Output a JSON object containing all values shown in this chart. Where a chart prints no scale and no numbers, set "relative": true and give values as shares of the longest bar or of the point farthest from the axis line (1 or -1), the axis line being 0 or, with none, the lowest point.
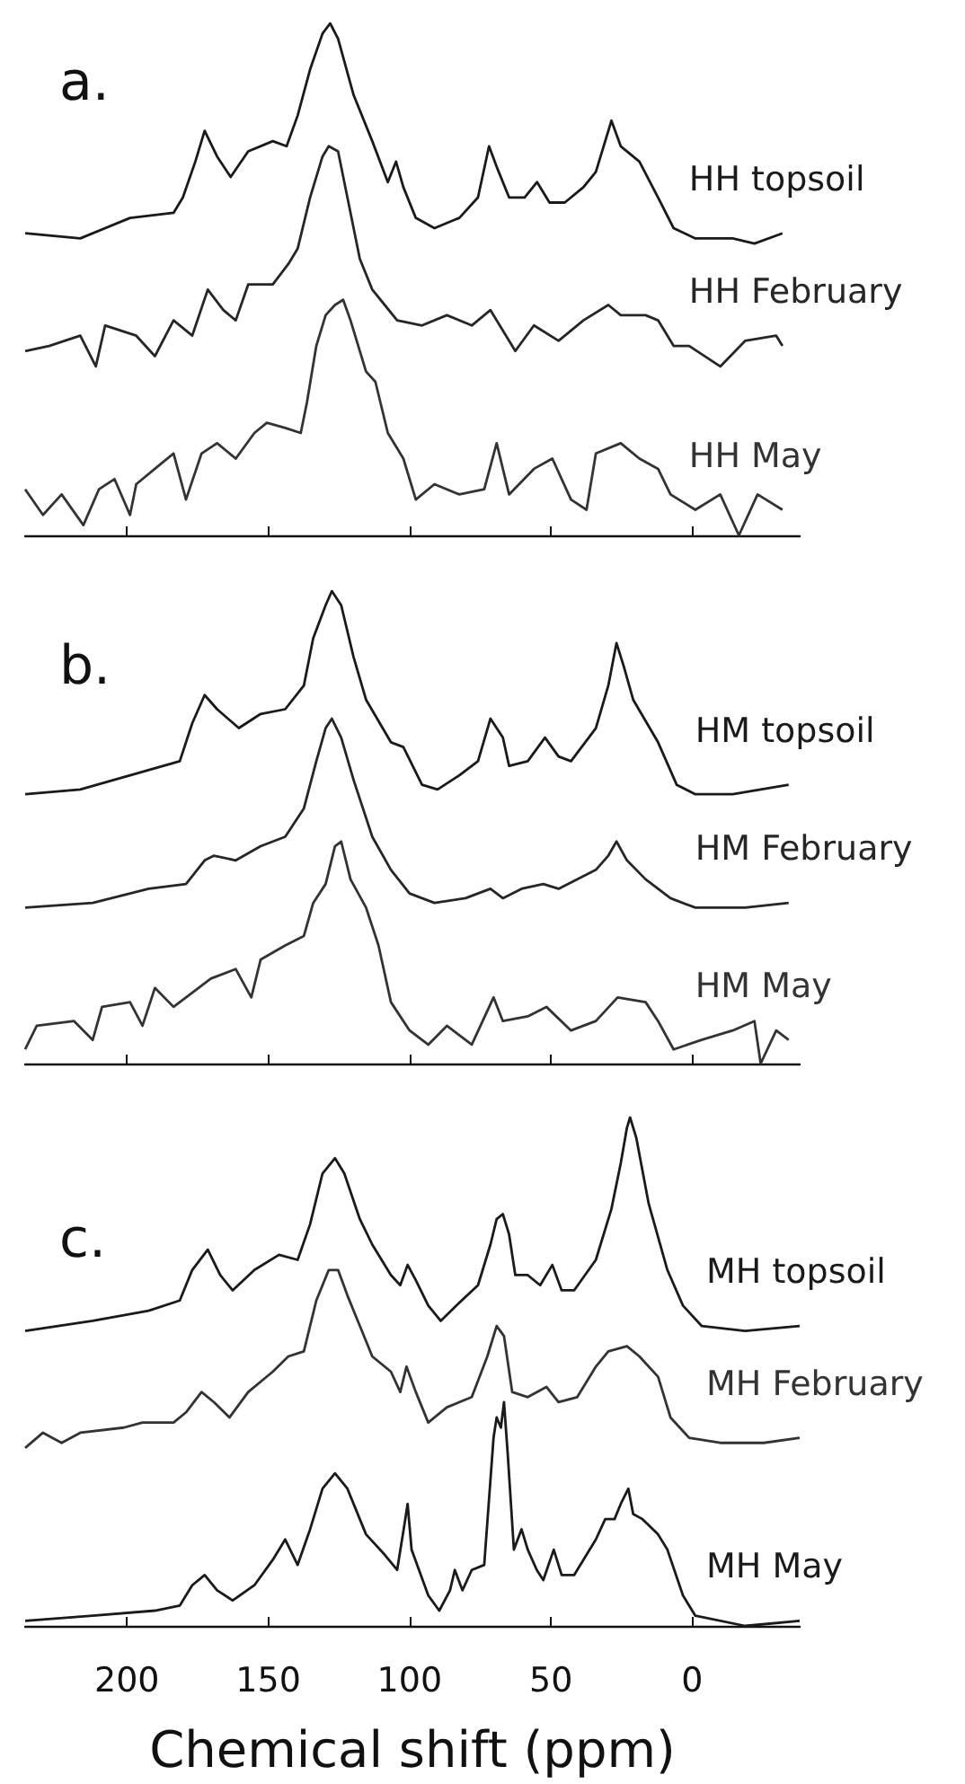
{
  "chart_data": [
    {
      "type": "line",
      "title": "a.",
      "relative": true,
      "xlim": [
        236,
        -38
      ],
      "xticks": [
        200,
        150,
        100,
        50,
        0
      ],
      "tick_labels": false,
      "series": [
        {
          "name": "HH topsoil",
          "color": "#1a1a1a",
          "x": [
            236,
            216.5,
            198.9,
            183.5,
            180.2,
            175.8,
            172.5,
            168.1,
            163.3,
            157.1,
            148.4,
            143.5,
            139.6,
            135.2,
            130.8,
            128.1,
            125.3,
            119.8,
            113.2,
            107.7,
            104.8,
            102.2,
            97.8,
            91.2,
            82.4,
            75.8,
            71.9,
            69.2,
            64.8,
            59.3,
            54.9,
            50.5,
            45.1,
            38.5,
            34.1,
            30.8,
            28.6,
            25.3,
            18.7,
            12.1,
            6.6,
            -1.1,
            -14.3,
            -22,
            -31.9
          ],
          "values": [
            0.59,
            0.58,
            0.62,
            0.63,
            0.66,
            0.73,
            0.79,
            0.74,
            0.7,
            0.75,
            0.77,
            0.76,
            0.82,
            0.91,
            0.98,
            1,
            0.97,
            0.86,
            0.77,
            0.69,
            0.73,
            0.68,
            0.62,
            0.6,
            0.62,
            0.66,
            0.76,
            0.72,
            0.66,
            0.66,
            0.69,
            0.65,
            0.65,
            0.68,
            0.71,
            0.77,
            0.81,
            0.76,
            0.73,
            0.66,
            0.6,
            0.58,
            0.58,
            0.57,
            0.59
          ]
        },
        {
          "name": "HH February",
          "color": "#262626",
          "x": [
            236,
            227.5,
            216.5,
            211,
            207.7,
            196.7,
            190.1,
            183.5,
            176.9,
            171.4,
            165.9,
            161.5,
            157.1,
            148.4,
            142.9,
            139.6,
            135.2,
            130.8,
            128.6,
            125.3,
            122,
            117.6,
            113.2,
            108.8,
            104.4,
            95.6,
            86.8,
            78,
            71.4,
            62.6,
            56,
            47.3,
            38.5,
            29.7,
            25.3,
            16.5,
            12.1,
            6.6,
            1.1,
            -9.9,
            -18.7,
            -29.7,
            -31.9
          ],
          "values": [
            0.36,
            0.37,
            0.39,
            0.33,
            0.41,
            0.39,
            0.35,
            0.42,
            0.39,
            0.48,
            0.44,
            0.42,
            0.49,
            0.49,
            0.53,
            0.56,
            0.66,
            0.74,
            0.76,
            0.75,
            0.66,
            0.54,
            0.48,
            0.45,
            0.42,
            0.41,
            0.43,
            0.41,
            0.44,
            0.36,
            0.41,
            0.38,
            0.42,
            0.45,
            0.43,
            0.43,
            0.42,
            0.37,
            0.37,
            0.33,
            0.38,
            0.39,
            0.37
          ]
        },
        {
          "name": "HH May",
          "color": "#333333",
          "x": [
            236,
            229.7,
            223.1,
            215.4,
            209.9,
            204.4,
            198.9,
            196.7,
            187.9,
            183.5,
            179.1,
            173.6,
            168.1,
            161.5,
            154.9,
            150.5,
            144,
            138.5,
            136.3,
            133,
            129.7,
            126.4,
            123.5,
            120.9,
            115.4,
            112.1,
            107.7,
            102.2,
            97.8,
            91.2,
            82.4,
            73.6,
            69.2,
            64.8,
            56,
            49.5,
            42.9,
            37.4,
            34.1,
            25.3,
            18.7,
            12.1,
            7.7,
            -1.1,
            -9.9,
            -16.5,
            -23.1,
            -31.9
          ],
          "values": [
            0.09,
            0.04,
            0.08,
            0.02,
            0.09,
            0.11,
            0.04,
            0.1,
            0.14,
            0.16,
            0.07,
            0.16,
            0.18,
            0.15,
            0.2,
            0.22,
            0.21,
            0.2,
            0.26,
            0.37,
            0.43,
            0.45,
            0.46,
            0.42,
            0.32,
            0.3,
            0.2,
            0.15,
            0.07,
            0.1,
            0.08,
            0.09,
            0.18,
            0.08,
            0.13,
            0.15,
            0.07,
            0.05,
            0.16,
            0.18,
            0.15,
            0.13,
            0.08,
            0.05,
            0.08,
            0,
            0.08,
            0.05
          ]
        }
      ]
    },
    {
      "type": "line",
      "title": "b.",
      "relative": true,
      "xlim": [
        236,
        -38
      ],
      "xticks": [
        200,
        150,
        100,
        50,
        0
      ],
      "tick_labels": false,
      "series": [
        {
          "name": "HM topsoil",
          "color": "#1a1a1a",
          "x": [
            236,
            216.5,
            198.9,
            181.3,
            176.9,
            172.5,
            168.1,
            160.4,
            152.7,
            144,
            137.4,
            134.1,
            129.7,
            127.5,
            124.2,
            119.8,
            115.4,
            106.6,
            102.2,
            95.6,
            90.1,
            82.4,
            75.8,
            71.4,
            67,
            64.8,
            58.2,
            52.1,
            47.3,
            42.9,
            34.1,
            29.7,
            26.8,
            24.2,
            20.9,
            12.1,
            5.5,
            -1.1,
            -14.3,
            -34.1
          ],
          "values": [
            0.57,
            0.58,
            0.61,
            0.64,
            0.72,
            0.78,
            0.75,
            0.71,
            0.74,
            0.75,
            0.8,
            0.9,
            0.97,
            1,
            0.97,
            0.86,
            0.77,
            0.68,
            0.67,
            0.59,
            0.58,
            0.61,
            0.64,
            0.73,
            0.69,
            0.63,
            0.64,
            0.69,
            0.65,
            0.64,
            0.71,
            0.8,
            0.89,
            0.84,
            0.77,
            0.68,
            0.59,
            0.57,
            0.57,
            0.59
          ]
        },
        {
          "name": "HM February",
          "color": "#262626",
          "x": [
            236,
            212.1,
            192.3,
            179.1,
            172.5,
            169.2,
            161.5,
            152.7,
            144,
            137.4,
            133,
            129.7,
            127.5,
            124.2,
            119.8,
            113.2,
            106.6,
            100,
            91.2,
            80.2,
            71.4,
            67,
            60.4,
            52.7,
            47.3,
            34.1,
            29.7,
            26.8,
            23.1,
            16.5,
            7.7,
            -1.1,
            -18.7,
            -34.1
          ],
          "values": [
            0.33,
            0.34,
            0.37,
            0.38,
            0.43,
            0.44,
            0.43,
            0.46,
            0.48,
            0.54,
            0.64,
            0.71,
            0.73,
            0.69,
            0.6,
            0.48,
            0.41,
            0.36,
            0.34,
            0.35,
            0.37,
            0.35,
            0.37,
            0.38,
            0.37,
            0.41,
            0.44,
            0.47,
            0.43,
            0.39,
            0.35,
            0.33,
            0.33,
            0.34
          ]
        },
        {
          "name": "HM May",
          "color": "#333333",
          "x": [
            236,
            231.9,
            218.7,
            212.1,
            208.8,
            198.9,
            194.5,
            190.1,
            183.5,
            179.1,
            170.3,
            161.5,
            156,
            152.7,
            144,
            137.4,
            134.1,
            129.7,
            126.4,
            124.2,
            120.9,
            115.4,
            111,
            106.6,
            100,
            93.4,
            86.8,
            78,
            70.3,
            67,
            58.2,
            51.6,
            42.9,
            34.1,
            26.4,
            16.5,
            12.1,
            6.6,
            -3.3,
            -14.3,
            -22,
            -24.2,
            -29.7,
            -34.1
          ],
          "values": [
            0.03,
            0.08,
            0.09,
            0.05,
            0.12,
            0.13,
            0.08,
            0.16,
            0.12,
            0.14,
            0.18,
            0.2,
            0.14,
            0.22,
            0.25,
            0.27,
            0.34,
            0.38,
            0.46,
            0.47,
            0.39,
            0.33,
            0.25,
            0.13,
            0.07,
            0.04,
            0.08,
            0.04,
            0.14,
            0.09,
            0.1,
            0.12,
            0.07,
            0.09,
            0.14,
            0.13,
            0.09,
            0.03,
            0.05,
            0.07,
            0.09,
            0,
            0.07,
            0.05
          ]
        }
      ]
    },
    {
      "type": "line",
      "title": "c.",
      "relative": true,
      "xlim": [
        236,
        -38
      ],
      "xticks": [
        200,
        150,
        100,
        50,
        0
      ],
      "tick_labels": "x",
      "xlabel": "Chemical shift (ppm)",
      "series": [
        {
          "name": "MH topsoil",
          "color": "#1a1a1a",
          "x": [
            236,
            212.1,
            192.3,
            181.3,
            176.9,
            171.4,
            167,
            162.6,
            154.9,
            146.2,
            139.6,
            135.2,
            130.8,
            126.4,
            123.1,
            117.6,
            113.2,
            106.6,
            103.3,
            100.7,
            97.8,
            93.4,
            89,
            83.5,
            75.8,
            71.4,
            69.2,
            67,
            64.8,
            62.6,
            58.2,
            53.8,
            49.5,
            46.2,
            41.8,
            34.1,
            28.6,
            25.3,
            23.1,
            22,
            19.8,
            15.4,
            8.8,
            3.3,
            -3.3,
            -18.7,
            -38
          ],
          "values": [
            0.58,
            0.6,
            0.62,
            0.64,
            0.7,
            0.74,
            0.69,
            0.66,
            0.7,
            0.73,
            0.72,
            0.79,
            0.89,
            0.92,
            0.89,
            0.8,
            0.75,
            0.69,
            0.67,
            0.71,
            0.68,
            0.63,
            0.6,
            0.63,
            0.67,
            0.75,
            0.8,
            0.81,
            0.77,
            0.69,
            0.69,
            0.67,
            0.71,
            0.66,
            0.66,
            0.72,
            0.82,
            0.91,
            0.98,
            1,
            0.96,
            0.83,
            0.7,
            0.63,
            0.59,
            0.58,
            0.59
          ]
        },
        {
          "name": "MH February",
          "color": "#333333",
          "x": [
            236,
            229.7,
            223.1,
            216.5,
            201.1,
            194.5,
            183.5,
            179.1,
            173.6,
            169.2,
            163.7,
            157.1,
            148.4,
            142.9,
            137.4,
            133,
            128.6,
            125.3,
            122,
            117.6,
            113.2,
            106.6,
            103.3,
            101.1,
            97.8,
            93.4,
            86.8,
            78,
            72.5,
            69.2,
            66.6,
            63.7,
            58.2,
            51.6,
            47.3,
            40.7,
            34.1,
            29.7,
            23.1,
            18.7,
            12.1,
            7.7,
            1.1,
            -9.9,
            -25.3,
            -38
          ],
          "values": [
            0.35,
            0.38,
            0.36,
            0.38,
            0.39,
            0.4,
            0.4,
            0.42,
            0.46,
            0.44,
            0.41,
            0.46,
            0.5,
            0.53,
            0.54,
            0.64,
            0.7,
            0.7,
            0.65,
            0.59,
            0.53,
            0.5,
            0.46,
            0.51,
            0.46,
            0.4,
            0.43,
            0.45,
            0.53,
            0.59,
            0.57,
            0.46,
            0.45,
            0.47,
            0.44,
            0.45,
            0.51,
            0.54,
            0.55,
            0.53,
            0.49,
            0.41,
            0.37,
            0.36,
            0.36,
            0.37
          ]
        },
        {
          "name": "MH May",
          "color": "#1a1a1a",
          "x": [
            236,
            212.1,
            190.1,
            181.3,
            176.9,
            172.5,
            168.1,
            162.6,
            154.9,
            148.4,
            144,
            139.6,
            135.2,
            130.8,
            126.4,
            122,
            115.4,
            108.8,
            104.4,
            101.8,
            100.7,
            99.3,
            93.4,
            89.5,
            85.7,
            84,
            81.3,
            78,
            73.6,
            70.3,
            69.2,
            67.7,
            66.6,
            65.3,
            63.1,
            60.4,
            58.2,
            55,
            52.7,
            49,
            46.2,
            41.8,
            34.1,
            30.8,
            27.5,
            25.3,
            22.6,
            20.9,
            17.6,
            12.1,
            8.8,
            3.3,
            -1.1,
            -18.7,
            -38
          ],
          "values": [
            0.01,
            0.02,
            0.03,
            0.04,
            0.08,
            0.1,
            0.07,
            0.05,
            0.08,
            0.13,
            0.17,
            0.12,
            0.19,
            0.27,
            0.3,
            0.27,
            0.18,
            0.14,
            0.11,
            0.2,
            0.24,
            0.15,
            0.06,
            0.03,
            0.07,
            0.11,
            0.07,
            0.11,
            0.12,
            0.37,
            0.41,
            0.39,
            0.44,
            0.34,
            0.15,
            0.19,
            0.15,
            0.11,
            0.09,
            0.15,
            0.1,
            0.1,
            0.17,
            0.21,
            0.21,
            0.24,
            0.27,
            0.22,
            0.21,
            0.18,
            0.15,
            0.06,
            0.02,
            0,
            0.01
          ]
        }
      ]
    }
  ]
}
